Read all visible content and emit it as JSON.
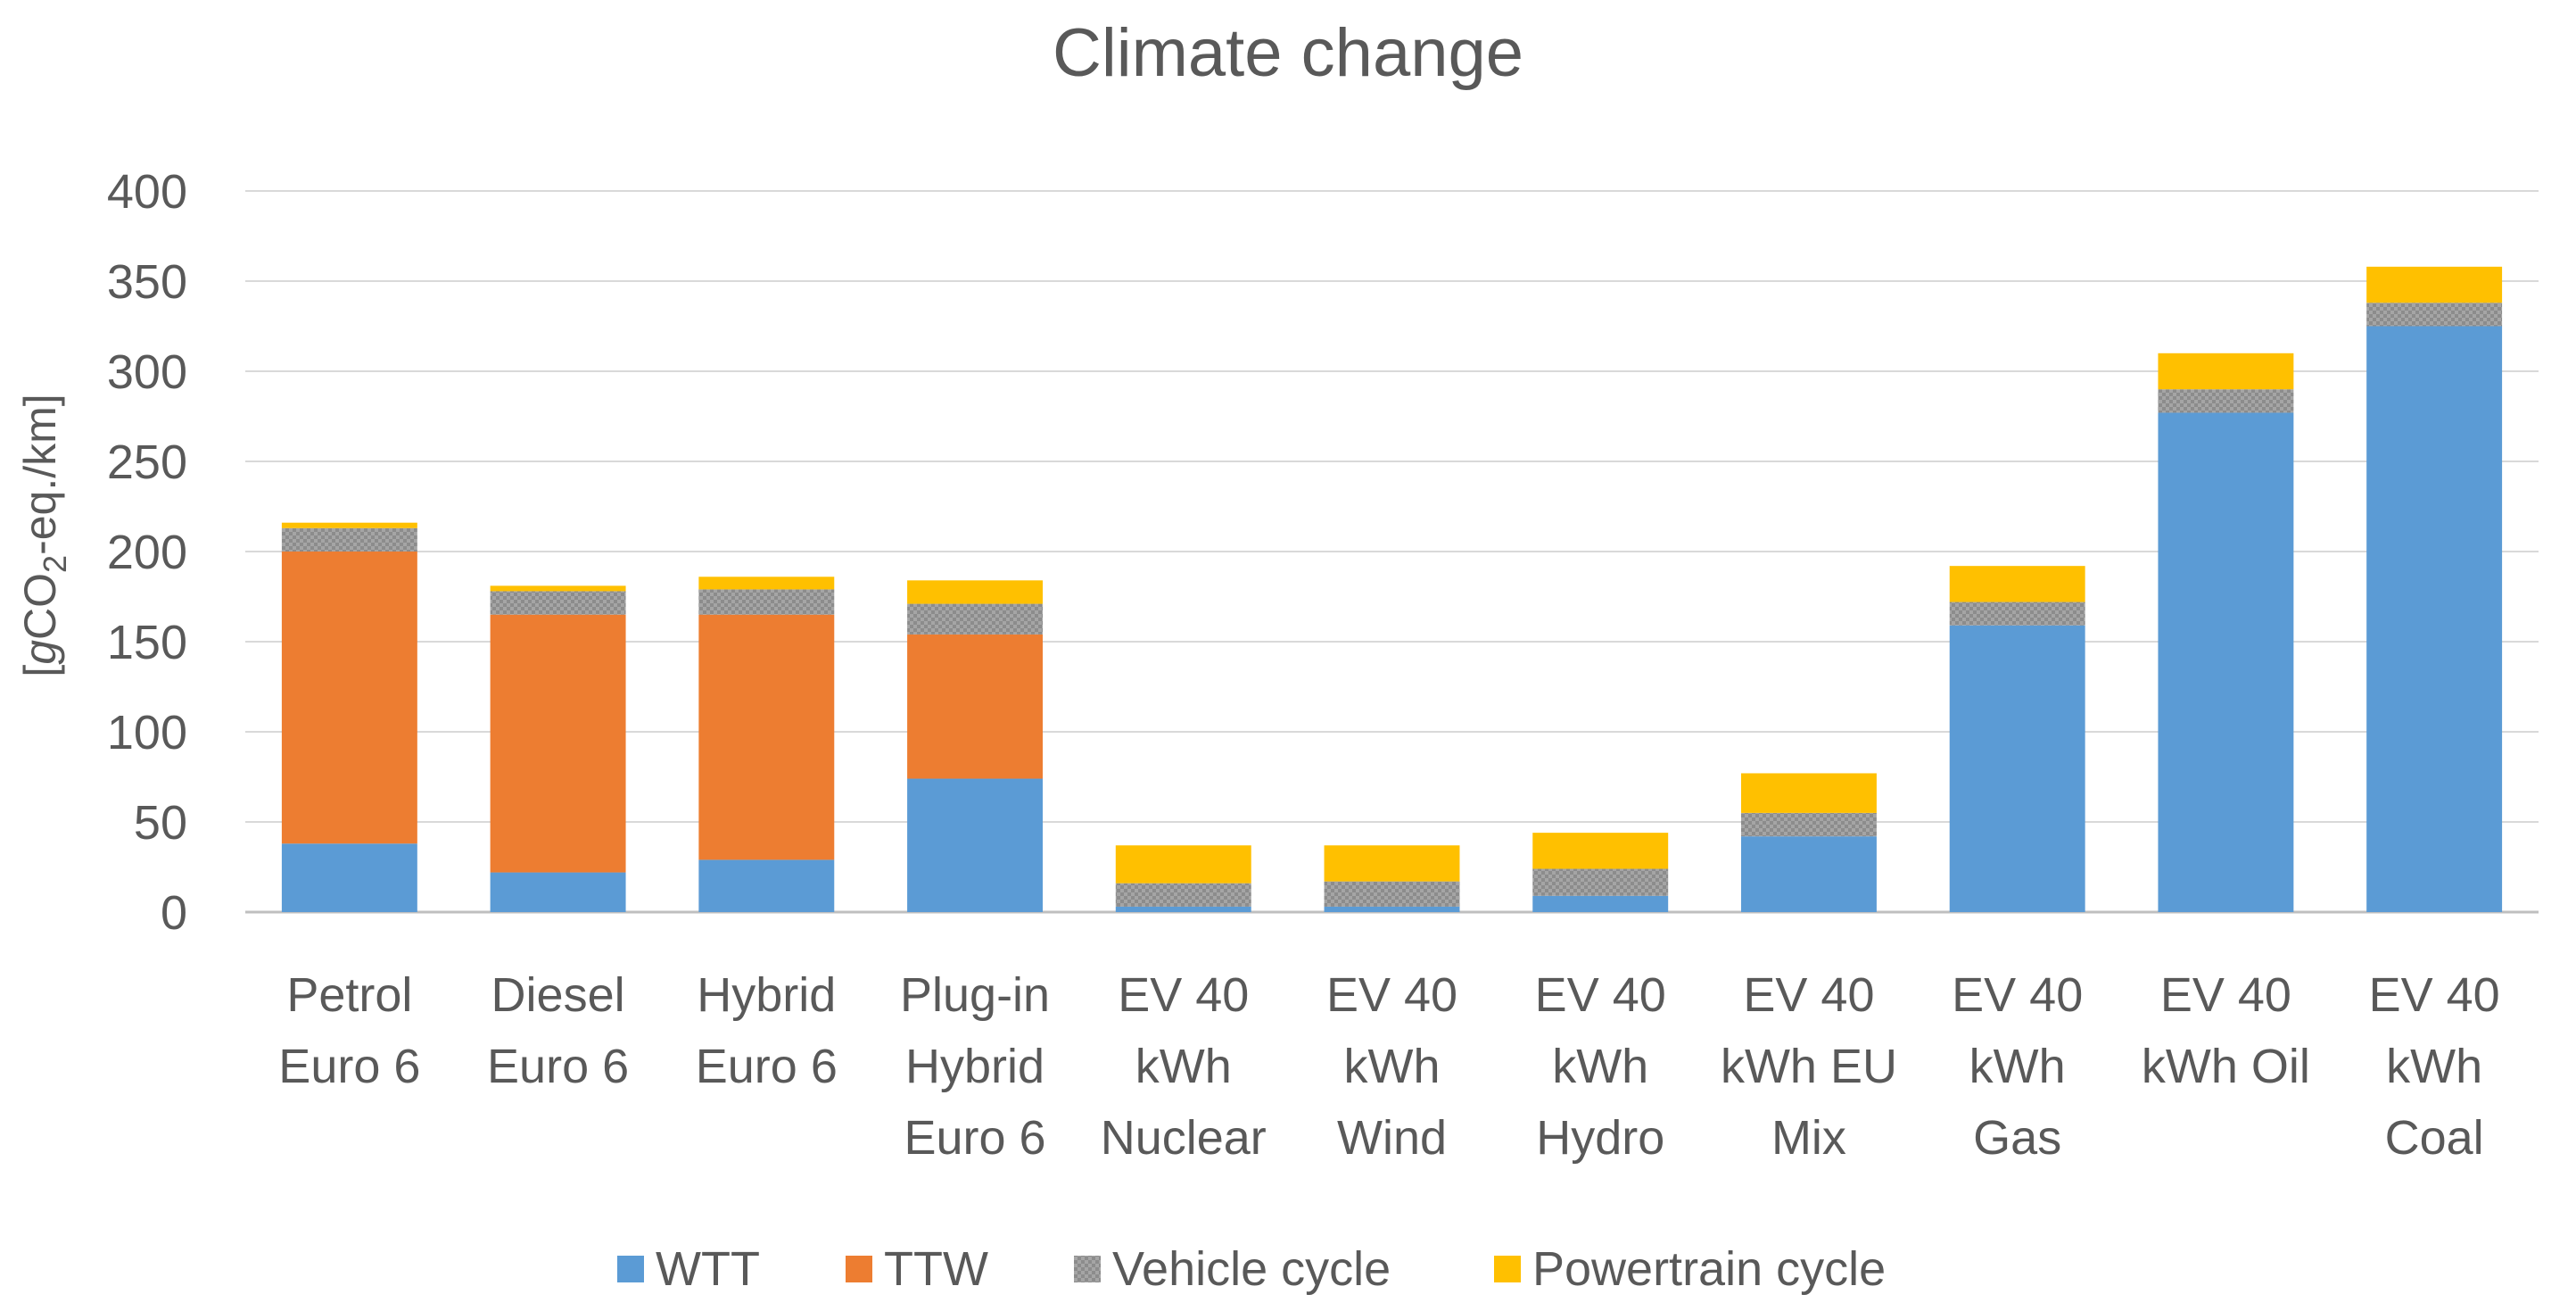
{
  "chart_data": {
    "type": "bar",
    "stacked": true,
    "title": "Climate change",
    "ylabel": "[gCO2-eq./km]",
    "ylabel_parts": {
      "prefix": "[",
      "italic": "g",
      "main": "CO",
      "sub": "2",
      "suffix": "-eq./km]"
    },
    "xlabel": "",
    "ylim": [
      0,
      400
    ],
    "yticks": [
      0,
      50,
      100,
      150,
      200,
      250,
      300,
      350,
      400
    ],
    "grid": true,
    "legend_position": "bottom",
    "categories": [
      [
        "Petrol",
        "Euro 6"
      ],
      [
        "Diesel",
        "Euro 6"
      ],
      [
        "Hybrid",
        "Euro 6"
      ],
      [
        "Plug-in",
        "Hybrid",
        "Euro 6"
      ],
      [
        "EV 40",
        "kWh",
        "Nuclear"
      ],
      [
        "EV 40",
        "kWh",
        "Wind"
      ],
      [
        "EV 40",
        "kWh",
        "Hydro"
      ],
      [
        "EV 40",
        "kWh EU",
        "Mix"
      ],
      [
        "EV 40",
        "kWh",
        "Gas"
      ],
      [
        "EV 40",
        "kWh Oil"
      ],
      [
        "EV 40",
        "kWh",
        "Coal"
      ]
    ],
    "series": [
      {
        "name": "WTT",
        "color": "#5B9BD5",
        "pattern": false,
        "values": [
          38,
          22,
          29,
          74,
          3,
          3,
          9,
          42,
          159,
          277,
          325
        ]
      },
      {
        "name": "TTW",
        "color": "#ED7D31",
        "pattern": false,
        "values": [
          162,
          143,
          136,
          80,
          0,
          0,
          0,
          0,
          0,
          0,
          0
        ]
      },
      {
        "name": "Vehicle cycle",
        "color": "#A5A5A5",
        "pattern": true,
        "values": [
          13,
          13,
          14,
          17,
          13,
          14,
          15,
          13,
          13,
          13,
          13
        ]
      },
      {
        "name": "Powertrain cycle",
        "color": "#FFC000",
        "pattern": false,
        "values": [
          3,
          3,
          7,
          13,
          21,
          20,
          20,
          22,
          20,
          20,
          20
        ]
      }
    ]
  }
}
